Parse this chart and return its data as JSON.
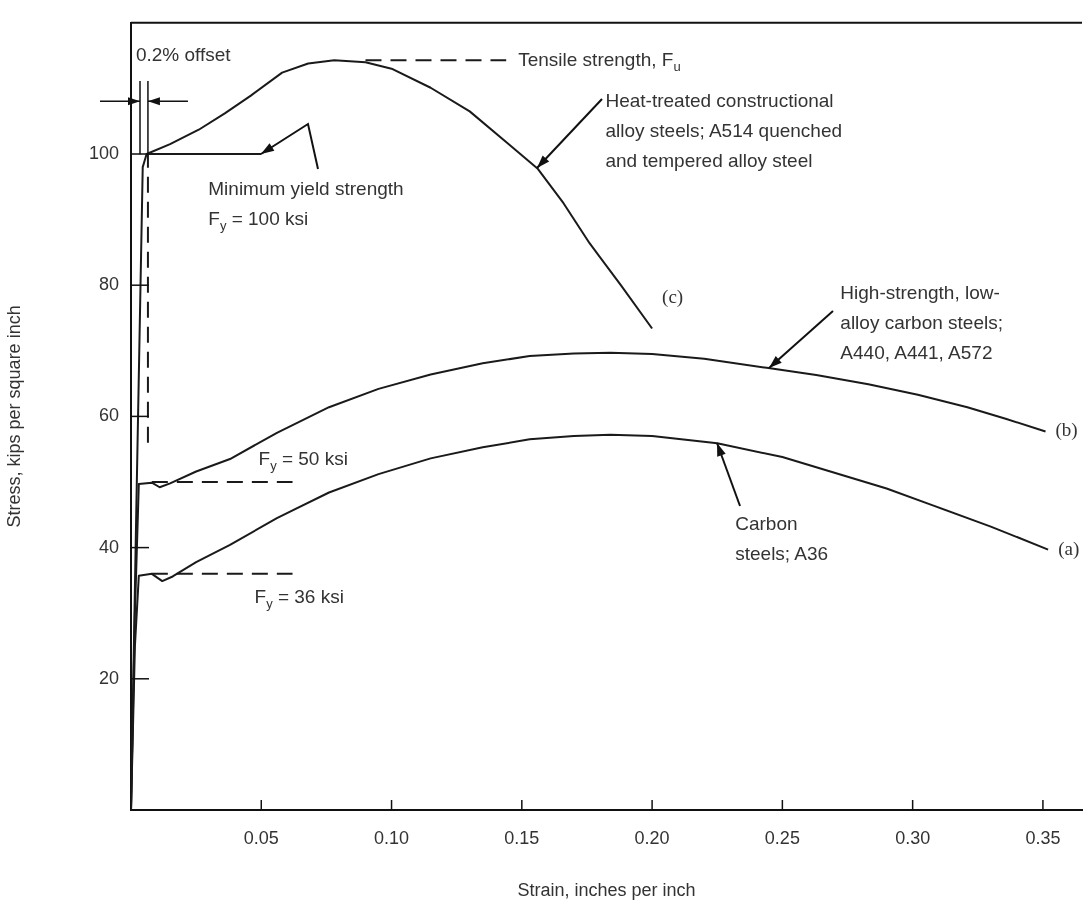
{
  "chart_data": {
    "type": "line",
    "xlabel": "Strain, inches per inch",
    "ylabel": "Stress, kips per square inch",
    "xlim": [
      0,
      0.365
    ],
    "ylim": [
      0,
      120
    ],
    "xticks": [
      0.05,
      {
        "value": 0.1,
        "label": "0.10"
      },
      0.15,
      {
        "value": 0.2,
        "label": "0.20"
      },
      0.25,
      {
        "value": 0.3,
        "label": "0.30"
      },
      0.35
    ],
    "yticks": [
      20,
      40,
      60,
      80,
      100
    ],
    "series": [
      {
        "name": "(c)",
        "color": "#1a1a1a",
        "x": [
          0,
          0.002,
          0.0045,
          0.006,
          0.015,
          0.026,
          0.036,
          0.046,
          0.058,
          0.068,
          0.078,
          0.09,
          0.1,
          0.115,
          0.13,
          0.145,
          0.156,
          0.166,
          0.176,
          0.188,
          0.2
        ],
        "values": [
          0,
          45,
          98,
          100,
          101.5,
          103.7,
          106.2,
          108.9,
          112.4,
          113.8,
          114.3,
          114,
          113,
          110.1,
          106.5,
          101.5,
          97.8,
          92.5,
          86.4,
          80,
          73.4
        ]
      },
      {
        "name": "(b)",
        "color": "#1a1a1a",
        "x": [
          0,
          0.0015,
          0.003,
          0.008,
          0.011,
          0.015,
          0.025,
          0.038,
          0.056,
          0.076,
          0.095,
          0.115,
          0.135,
          0.153,
          0.17,
          0.184,
          0.2,
          0.22,
          0.244,
          0.263,
          0.283,
          0.302,
          0.321,
          0.336,
          0.351
        ],
        "values": [
          0,
          30,
          49.7,
          49.9,
          49.2,
          49.8,
          51.6,
          53.5,
          57.5,
          61.4,
          64.2,
          66.4,
          68.1,
          69.2,
          69.6,
          69.7,
          69.5,
          68.8,
          67.4,
          66.3,
          64.9,
          63.3,
          61.4,
          59.6,
          57.7
        ]
      },
      {
        "name": "(a)",
        "color": "#1a1a1a",
        "x": [
          0,
          0.0015,
          0.003,
          0.008,
          0.012,
          0.016,
          0.025,
          0.038,
          0.056,
          0.076,
          0.095,
          0.115,
          0.135,
          0.153,
          0.17,
          0.184,
          0.2,
          0.225,
          0.25,
          0.27,
          0.29,
          0.308,
          0.33,
          0.352
        ],
        "values": [
          0,
          25,
          35.7,
          36,
          34.9,
          35.6,
          37.8,
          40.4,
          44.5,
          48.4,
          51.2,
          53.6,
          55.3,
          56.5,
          57,
          57.2,
          57,
          55.9,
          53.8,
          51.4,
          49,
          46.4,
          43.2,
          39.7
        ]
      },
      {
        "color": "#1a1a1a",
        "line_style": "dashed",
        "x": [
          0.0065,
          0.0065
        ],
        "values": [
          56,
          100
        ]
      },
      {
        "color": "#1a1a1a",
        "x": [
          0.006,
          0.05
        ],
        "values": [
          100,
          100
        ]
      },
      {
        "color": "#1a1a1a",
        "line_style": "dashed",
        "x": [
          0.008,
          0.062
        ],
        "values": [
          50,
          50
        ]
      },
      {
        "color": "#1a1a1a",
        "line_style": "dashed",
        "x": [
          0.008,
          0.062
        ],
        "values": [
          36,
          36
        ]
      },
      {
        "color": "#1a1a1a",
        "line_style": "dashed",
        "x": [
          0.09,
          0.144
        ],
        "values": [
          114.3,
          114.3
        ]
      }
    ],
    "annotations": [
      {
        "text": "0.2% offset",
        "x": 0.0065,
        "y": 100
      },
      {
        "text": "Tensile strength, F$_{u}$",
        "x": 0.144,
        "y": 114.3
      },
      {
        "text": "Heat-treated constructional\nalloy steels; A514 quenched\nand tempered alloy steel",
        "x": 0.156,
        "y": 97.8
      },
      {
        "text": "Minimum yield strength\nF$_{y}$ = 100 ksi",
        "x": 0.05,
        "y": 100
      },
      {
        "text": "F$_{y}$ = 50 ksi",
        "x": 0.062,
        "y": 50
      },
      {
        "text": "F$_{y}$ = 36 ksi",
        "x": 0.062,
        "y": 36
      },
      {
        "text": "High-strength, low-\nalloy carbon steels;\nA440, A441, A572",
        "x": 0.245,
        "y": 67.4
      },
      {
        "text": "Carbon\nsteels; A36",
        "x": 0.225,
        "y": 55.9
      }
    ]
  }
}
